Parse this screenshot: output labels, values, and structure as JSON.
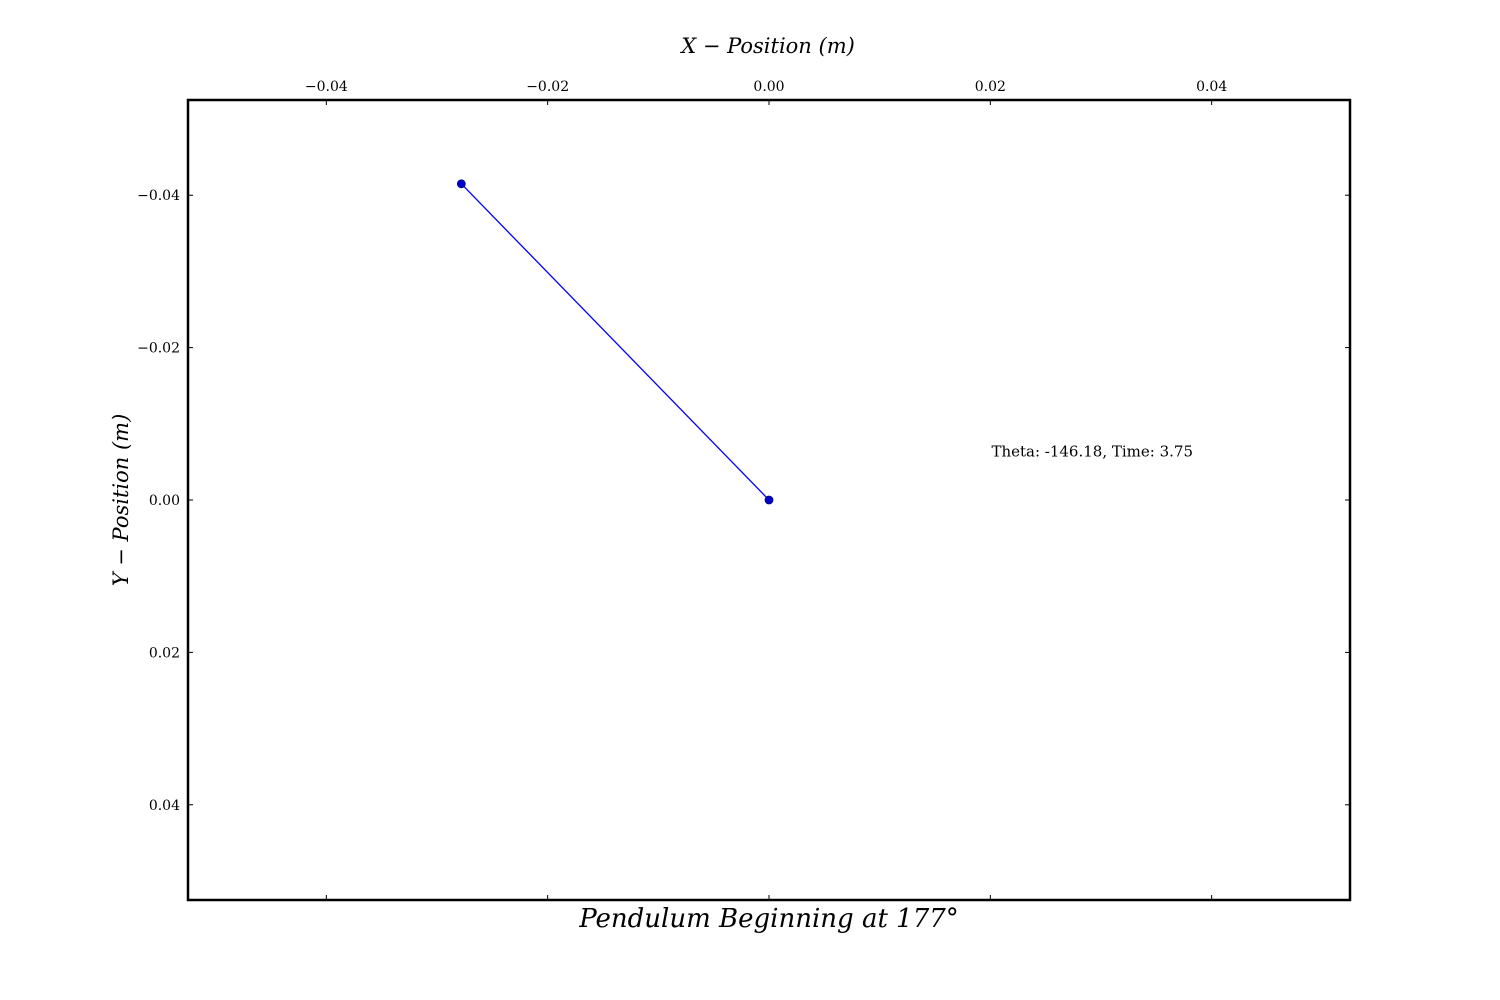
{
  "chart_data": {
    "type": "line",
    "title": "Pendulum Beginning at 177°",
    "xlabel": "X − Position (m)",
    "ylabel": "Y − Position (m)",
    "xlim": [
      -0.0525,
      0.0525
    ],
    "ylim": [
      0.0525,
      -0.0525
    ],
    "y_inverted": true,
    "grid": false,
    "x_ticks": [
      -0.04,
      -0.02,
      0.0,
      0.02,
      0.04
    ],
    "x_tick_labels": [
      "−0.04",
      "−0.02",
      "0.00",
      "0.02",
      "0.04"
    ],
    "y_ticks": [
      -0.04,
      -0.02,
      0.0,
      0.02,
      0.04
    ],
    "y_tick_labels": [
      "−0.04",
      "−0.02",
      "0.00",
      "0.02",
      "0.04"
    ],
    "series": [
      {
        "x": [
          -0.0278,
          0.0
        ],
        "y": [
          -0.0415,
          0.0
        ],
        "color": "#0000ff",
        "marker_color": "#0000cc"
      }
    ],
    "annotation": {
      "text": "Theta: -146.18, Time: 3.75",
      "x": 0.0201,
      "y": -0.0057
    }
  }
}
